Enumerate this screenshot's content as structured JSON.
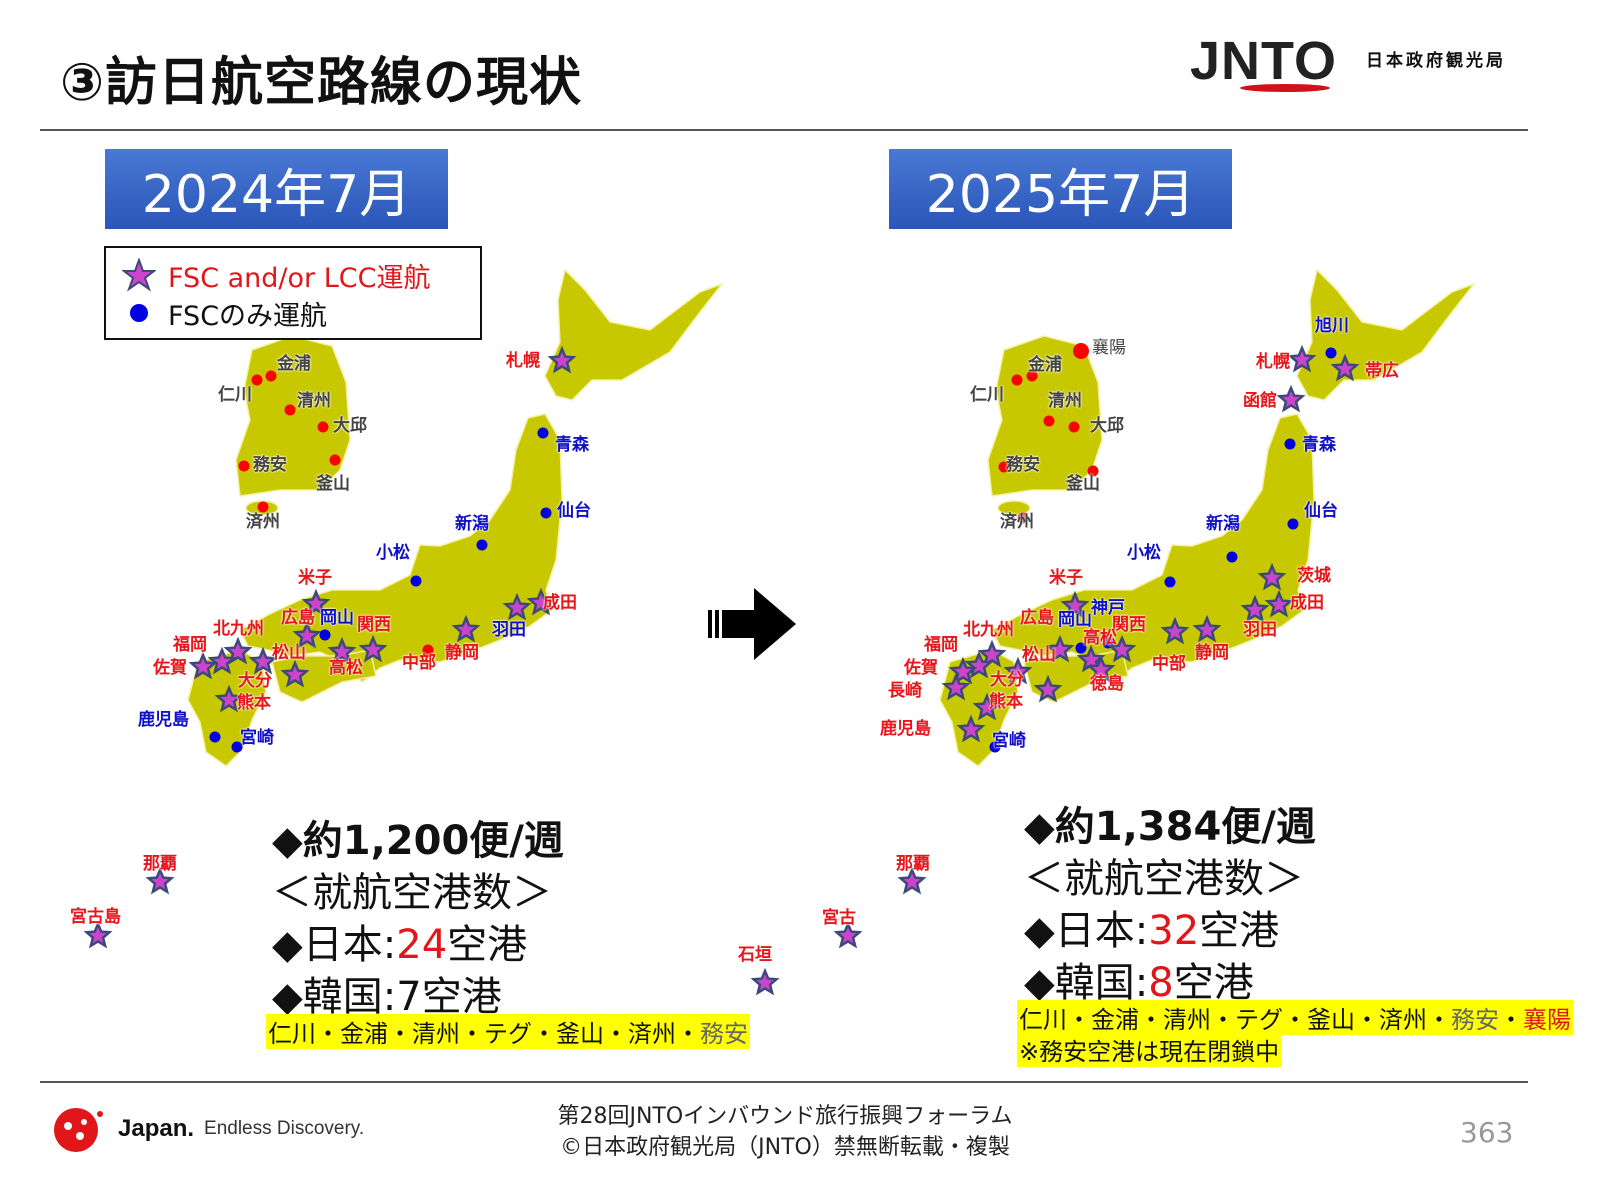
{
  "header": {
    "title": "③訪日航空路線の現状",
    "logo": "JNTO",
    "agency": "日本政府観光局"
  },
  "left": {
    "period": "2024年7月",
    "flights": "◆約1,200便/週",
    "subhead": "＜就航空港数＞",
    "japan_prefix": "◆日本:",
    "japan_count": "24",
    "japan_suffix": "空港",
    "korea_prefix": "◆韓国:",
    "korea_count": "7",
    "korea_suffix": "空港",
    "korea_list": "仁川・金浦・清州・テグ・釜山・済州・",
    "korea_list_closed": "務安",
    "airports": [
      {
        "name": "金浦",
        "kind": "korea"
      },
      {
        "name": "仁川",
        "kind": "korea"
      },
      {
        "name": "清州",
        "kind": "korea"
      },
      {
        "name": "大邱",
        "kind": "korea"
      },
      {
        "name": "務安",
        "kind": "korea"
      },
      {
        "name": "釜山",
        "kind": "korea"
      },
      {
        "name": "済州",
        "kind": "korea"
      },
      {
        "name": "札幌",
        "kind": "star"
      },
      {
        "name": "青森",
        "kind": "fsc"
      },
      {
        "name": "仙台",
        "kind": "fsc"
      },
      {
        "name": "新潟",
        "kind": "fsc"
      },
      {
        "name": "小松",
        "kind": "fsc"
      },
      {
        "name": "米子",
        "kind": "star"
      },
      {
        "name": "広島",
        "kind": "star"
      },
      {
        "name": "岡山",
        "kind": "fsc"
      },
      {
        "name": "関西",
        "kind": "star"
      },
      {
        "name": "北九州",
        "kind": "star"
      },
      {
        "name": "福岡",
        "kind": "star"
      },
      {
        "name": "佐賀",
        "kind": "star"
      },
      {
        "name": "松山",
        "kind": "star"
      },
      {
        "name": "高松",
        "kind": "star"
      },
      {
        "name": "大分",
        "kind": "star"
      },
      {
        "name": "熊本",
        "kind": "star"
      },
      {
        "name": "鹿児島",
        "kind": "fsc"
      },
      {
        "name": "宮崎",
        "kind": "fsc"
      },
      {
        "name": "中部",
        "kind": "red-dot"
      },
      {
        "name": "静岡",
        "kind": "star"
      },
      {
        "name": "羽田",
        "kind": "star-blue"
      },
      {
        "name": "成田",
        "kind": "star"
      },
      {
        "name": "那覇",
        "kind": "star"
      },
      {
        "name": "宮古島",
        "kind": "star"
      }
    ]
  },
  "right": {
    "period": "2025年7月",
    "flights": "◆約1,384便/週",
    "subhead": "＜就航空港数＞",
    "japan_prefix": "◆日本:",
    "japan_count": "32",
    "japan_suffix": "空港",
    "korea_prefix": "◆韓国:",
    "korea_count": "8",
    "korea_suffix": "空港",
    "korea_list": "仁川・金浦・清州・テグ・釜山・済州・",
    "korea_list_closed": "務安",
    "korea_list_sep": "・",
    "korea_list_new": "襄陽",
    "note": "※務安空港は現在閉鎖中",
    "airports": [
      {
        "name": "襄陽",
        "kind": "korea-new"
      },
      {
        "name": "金浦",
        "kind": "korea"
      },
      {
        "name": "仁川",
        "kind": "korea"
      },
      {
        "name": "清州",
        "kind": "korea"
      },
      {
        "name": "大邱",
        "kind": "korea"
      },
      {
        "name": "務安",
        "kind": "korea"
      },
      {
        "name": "釜山",
        "kind": "korea"
      },
      {
        "name": "済州",
        "kind": "korea"
      },
      {
        "name": "旭川",
        "kind": "fsc"
      },
      {
        "name": "札幌",
        "kind": "star"
      },
      {
        "name": "帯広",
        "kind": "star"
      },
      {
        "name": "函館",
        "kind": "star"
      },
      {
        "name": "青森",
        "kind": "fsc"
      },
      {
        "name": "仙台",
        "kind": "fsc"
      },
      {
        "name": "新潟",
        "kind": "fsc"
      },
      {
        "name": "小松",
        "kind": "fsc"
      },
      {
        "name": "米子",
        "kind": "star"
      },
      {
        "name": "広島",
        "kind": "star"
      },
      {
        "name": "岡山",
        "kind": "fsc"
      },
      {
        "name": "神戸",
        "kind": "fsc"
      },
      {
        "name": "関西",
        "kind": "star"
      },
      {
        "name": "高松",
        "kind": "star"
      },
      {
        "name": "徳島",
        "kind": "star"
      },
      {
        "name": "北九州",
        "kind": "star"
      },
      {
        "name": "福岡",
        "kind": "star"
      },
      {
        "name": "佐賀",
        "kind": "star"
      },
      {
        "name": "長崎",
        "kind": "star"
      },
      {
        "name": "松山",
        "kind": "star"
      },
      {
        "name": "大分",
        "kind": "star"
      },
      {
        "name": "熊本",
        "kind": "star"
      },
      {
        "name": "鹿児島",
        "kind": "star"
      },
      {
        "name": "宮崎",
        "kind": "fsc"
      },
      {
        "name": "中部",
        "kind": "star"
      },
      {
        "name": "静岡",
        "kind": "star"
      },
      {
        "name": "羽田",
        "kind": "star"
      },
      {
        "name": "成田",
        "kind": "star"
      },
      {
        "name": "茨城",
        "kind": "star"
      },
      {
        "name": "那覇",
        "kind": "star"
      },
      {
        "name": "宮古",
        "kind": "star"
      },
      {
        "name": "石垣",
        "kind": "star"
      }
    ]
  },
  "legend": {
    "star_label": "FSC and/or LCC運航",
    "dot_label": "FSCのみ運航"
  },
  "colors": {
    "land": "#c8c800",
    "star_fill": "#cc44cc",
    "star_stroke": "#3a4a7a",
    "fsc_dot": "#0000e0",
    "korea_dot": "#ff0000",
    "title_box": "#3366cc",
    "highlight": "#ffff00"
  },
  "footer": {
    "brand": "Japan.",
    "tagline": "Endless Discovery.",
    "line1": "第28回JNTOインバウンド旅行振興フォーラム",
    "line2": "©日本政府観光局（JNTO）禁無断転載・複製",
    "page": "363"
  }
}
